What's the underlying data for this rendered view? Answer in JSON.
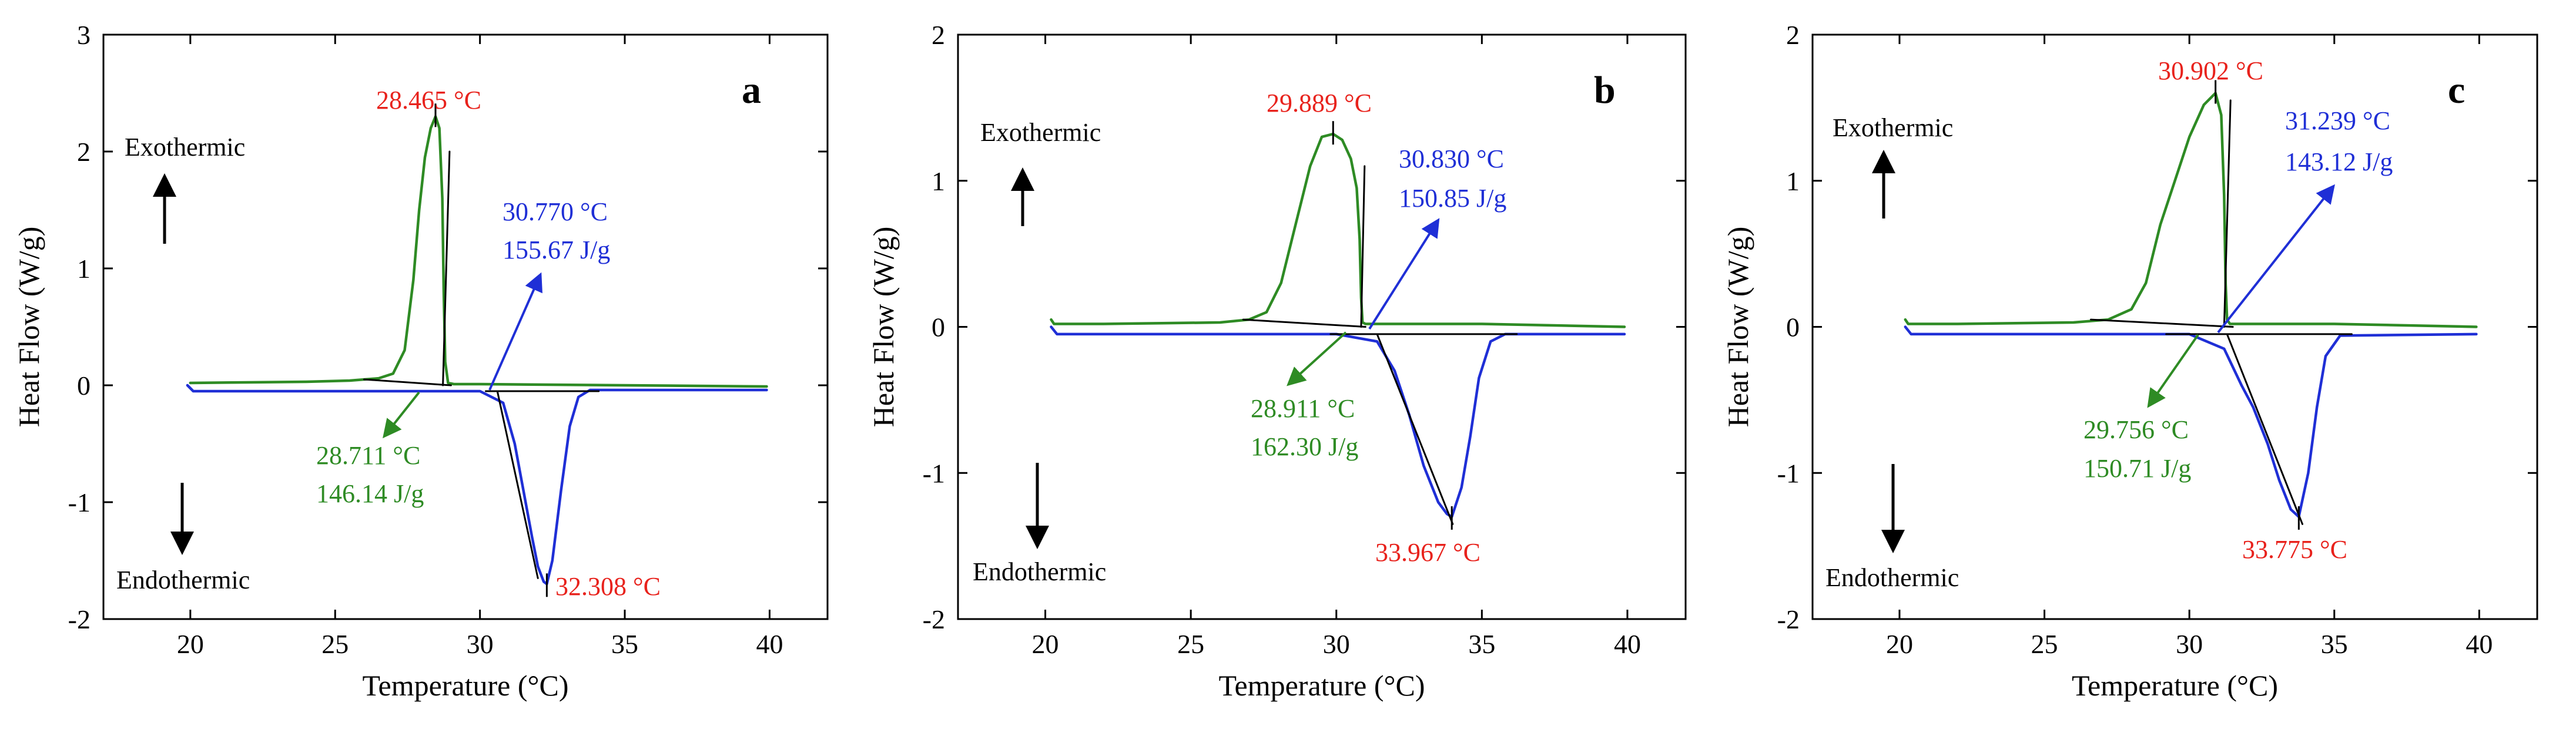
{
  "chart_data": [
    {
      "type": "line",
      "panel_label": "a",
      "xlabel": "Temperature (°C)",
      "ylabel": "Heat Flow (W/g)",
      "xlim": [
        17,
        42
      ],
      "ylim": [
        -2,
        3
      ],
      "xticks": [
        20,
        25,
        30,
        35,
        40
      ],
      "yticks": [
        -2,
        -1,
        0,
        1,
        2,
        3
      ],
      "exothermic_label": "Exothermic",
      "endothermic_label": "Endothermic",
      "series": [
        {
          "name": "cooling",
          "color": "#2e8b24",
          "x": [
            20.0,
            22.0,
            24.0,
            25.5,
            26.5,
            27.0,
            27.4,
            27.7,
            27.9,
            28.1,
            28.3,
            28.465,
            28.6,
            28.7,
            28.75,
            28.8,
            28.9,
            29.1,
            30.0,
            35.0,
            39.9
          ],
          "y": [
            0.02,
            0.025,
            0.03,
            0.04,
            0.06,
            0.1,
            0.3,
            0.9,
            1.5,
            1.95,
            2.2,
            2.3,
            2.2,
            1.6,
            0.8,
            0.2,
            0.02,
            0.01,
            0.01,
            0.0,
            -0.01
          ]
        },
        {
          "name": "heating",
          "color": "#1f2fd6",
          "x": [
            19.9,
            20.1,
            25.0,
            30.0,
            30.8,
            31.2,
            31.5,
            31.8,
            32.0,
            32.2,
            32.308,
            32.5,
            32.8,
            33.1,
            33.4,
            33.8,
            35.0,
            39.9
          ],
          "y": [
            0.0,
            -0.05,
            -0.05,
            -0.05,
            -0.15,
            -0.5,
            -0.9,
            -1.3,
            -1.55,
            -1.68,
            -1.7,
            -1.5,
            -0.9,
            -0.35,
            -0.1,
            -0.04,
            -0.04,
            -0.04
          ]
        },
        {
          "name": "cooling-baseline",
          "color": "#000000",
          "x": [
            26.0,
            29.0
          ],
          "y": [
            0.05,
            0.0
          ]
        },
        {
          "name": "cooling-onset-tangent",
          "color": "#000000",
          "x": [
            28.72,
            28.95
          ],
          "y": [
            0.0,
            2.0
          ]
        },
        {
          "name": "heating-baseline",
          "color": "#000000",
          "x": [
            30.2,
            34.1
          ],
          "y": [
            -0.05,
            -0.05
          ]
        },
        {
          "name": "heating-onset-tangent",
          "color": "#000000",
          "x": [
            30.6,
            32.0
          ],
          "y": [
            -0.05,
            -1.65
          ]
        }
      ],
      "annotations": [
        {
          "text": "28.465 °C",
          "x": 28.465,
          "y": 2.3,
          "color": "#e8221c"
        },
        {
          "text": "30.770 °C",
          "x": 30.77,
          "y": -0.05,
          "color": "#1f2fd6"
        },
        {
          "text": "155.67 J/g",
          "x": 30.77,
          "y": -0.05,
          "color": "#1f2fd6"
        },
        {
          "text": "28.711 °C",
          "x": 28.711,
          "y": 0.0,
          "color": "#2e8b24"
        },
        {
          "text": "146.14 J/g",
          "x": 28.711,
          "y": 0.0,
          "color": "#2e8b24"
        },
        {
          "text": "32.308 °C",
          "x": 32.308,
          "y": -1.7,
          "color": "#e8221c"
        }
      ]
    },
    {
      "type": "line",
      "panel_label": "b",
      "xlabel": "Temperature (°C)",
      "ylabel": "Heat Flow (W/g)",
      "xlim": [
        17,
        42
      ],
      "ylim": [
        -2,
        2
      ],
      "xticks": [
        20,
        25,
        30,
        35,
        40
      ],
      "yticks": [
        -2,
        -1,
        0,
        1,
        2
      ],
      "exothermic_label": "Exothermic",
      "endothermic_label": "Endothermic",
      "series": [
        {
          "name": "cooling",
          "color": "#2e8b24",
          "x": [
            20.2,
            20.3,
            22.0,
            24.0,
            26.0,
            27.0,
            27.6,
            28.1,
            28.6,
            29.1,
            29.5,
            29.889,
            30.2,
            30.5,
            30.7,
            30.8,
            30.85,
            30.9,
            31.0,
            35.0,
            39.9
          ],
          "y": [
            0.05,
            0.02,
            0.02,
            0.025,
            0.03,
            0.05,
            0.1,
            0.3,
            0.7,
            1.1,
            1.3,
            1.32,
            1.28,
            1.15,
            0.95,
            0.6,
            0.2,
            0.03,
            0.02,
            0.02,
            0.0
          ]
        },
        {
          "name": "heating",
          "color": "#1f2fd6",
          "x": [
            20.2,
            20.4,
            25.0,
            30.0,
            31.4,
            32.0,
            32.5,
            33.0,
            33.5,
            33.8,
            33.967,
            34.3,
            34.6,
            34.9,
            35.3,
            35.8,
            39.9
          ],
          "y": [
            0.0,
            -0.05,
            -0.05,
            -0.05,
            -0.1,
            -0.3,
            -0.6,
            -0.95,
            -1.2,
            -1.28,
            -1.3,
            -1.1,
            -0.75,
            -0.35,
            -0.1,
            -0.05,
            -0.05
          ]
        },
        {
          "name": "cooling-baseline",
          "color": "#000000",
          "x": [
            26.8,
            31.0
          ],
          "y": [
            0.05,
            0.0
          ]
        },
        {
          "name": "cooling-onset-tangent",
          "color": "#000000",
          "x": [
            30.85,
            30.97
          ],
          "y": [
            0.0,
            1.1
          ]
        },
        {
          "name": "heating-baseline",
          "color": "#000000",
          "x": [
            29.8,
            36.2
          ],
          "y": [
            -0.05,
            -0.05
          ]
        },
        {
          "name": "heating-onset-tangent",
          "color": "#000000",
          "x": [
            31.4,
            34.0
          ],
          "y": [
            -0.05,
            -1.35
          ]
        }
      ],
      "annotations": [
        {
          "text": "29.889 °C",
          "x": 29.889,
          "y": 1.32,
          "color": "#e8221c"
        },
        {
          "text": "30.830 °C",
          "x": 30.83,
          "y": 0.0,
          "color": "#1f2fd6"
        },
        {
          "text": "150.85 J/g",
          "x": 30.83,
          "y": 0.0,
          "color": "#1f2fd6"
        },
        {
          "text": "28.911 °C",
          "x": 28.911,
          "y": 0.0,
          "color": "#2e8b24"
        },
        {
          "text": "162.30 J/g",
          "x": 28.911,
          "y": 0.0,
          "color": "#2e8b24"
        },
        {
          "text": "33.967 °C",
          "x": 33.967,
          "y": -1.3,
          "color": "#e8221c"
        }
      ]
    },
    {
      "type": "line",
      "panel_label": "c",
      "xlabel": "Temperature (°C)",
      "ylabel": "Heat Flow (W/g)",
      "xlim": [
        17,
        42
      ],
      "ylim": [
        -2,
        2
      ],
      "xticks": [
        20,
        25,
        30,
        35,
        40
      ],
      "yticks": [
        -2,
        -1,
        0,
        1,
        2
      ],
      "exothermic_label": "Exothermic",
      "endothermic_label": "Endothermic",
      "series": [
        {
          "name": "cooling",
          "color": "#2e8b24",
          "x": [
            20.2,
            20.3,
            22.0,
            24.0,
            26.0,
            27.2,
            28.0,
            28.5,
            29.0,
            29.5,
            30.0,
            30.5,
            30.902,
            31.1,
            31.2,
            31.25,
            31.3,
            31.4,
            35.0,
            39.9
          ],
          "y": [
            0.05,
            0.02,
            0.02,
            0.025,
            0.03,
            0.05,
            0.12,
            0.3,
            0.7,
            1.0,
            1.3,
            1.52,
            1.6,
            1.45,
            0.9,
            0.3,
            0.05,
            0.02,
            0.02,
            0.0
          ]
        },
        {
          "name": "heating",
          "color": "#1f2fd6",
          "x": [
            20.2,
            20.4,
            25.0,
            30.0,
            31.2,
            31.8,
            32.2,
            32.7,
            33.1,
            33.5,
            33.775,
            34.1,
            34.4,
            34.7,
            35.2,
            39.9
          ],
          "y": [
            0.0,
            -0.05,
            -0.05,
            -0.05,
            -0.15,
            -0.4,
            -0.55,
            -0.8,
            -1.05,
            -1.25,
            -1.3,
            -1.0,
            -0.55,
            -0.2,
            -0.06,
            -0.05
          ]
        },
        {
          "name": "cooling-baseline",
          "color": "#000000",
          "x": [
            26.6,
            31.5
          ],
          "y": [
            0.05,
            0.0
          ]
        },
        {
          "name": "cooling-onset-tangent",
          "color": "#000000",
          "x": [
            31.2,
            31.42
          ],
          "y": [
            0.0,
            1.55
          ]
        },
        {
          "name": "heating-baseline",
          "color": "#000000",
          "x": [
            29.2,
            35.6
          ],
          "y": [
            -0.05,
            -0.05
          ]
        },
        {
          "name": "heating-onset-tangent",
          "color": "#000000",
          "x": [
            31.3,
            33.9
          ],
          "y": [
            -0.05,
            -1.35
          ]
        }
      ],
      "annotations": [
        {
          "text": "30.902 °C",
          "x": 30.902,
          "y": 1.6,
          "color": "#e8221c"
        },
        {
          "text": "31.239 °C",
          "x": 31.239,
          "y": 0.0,
          "color": "#1f2fd6"
        },
        {
          "text": "143.12 J/g",
          "x": 31.239,
          "y": 0.0,
          "color": "#1f2fd6"
        },
        {
          "text": "29.756 °C",
          "x": 29.756,
          "y": 0.0,
          "color": "#2e8b24"
        },
        {
          "text": "150.71 J/g",
          "x": 29.756,
          "y": 0.0,
          "color": "#2e8b24"
        },
        {
          "text": "33.775 °C",
          "x": 33.775,
          "y": -1.3,
          "color": "#e8221c"
        }
      ]
    }
  ]
}
